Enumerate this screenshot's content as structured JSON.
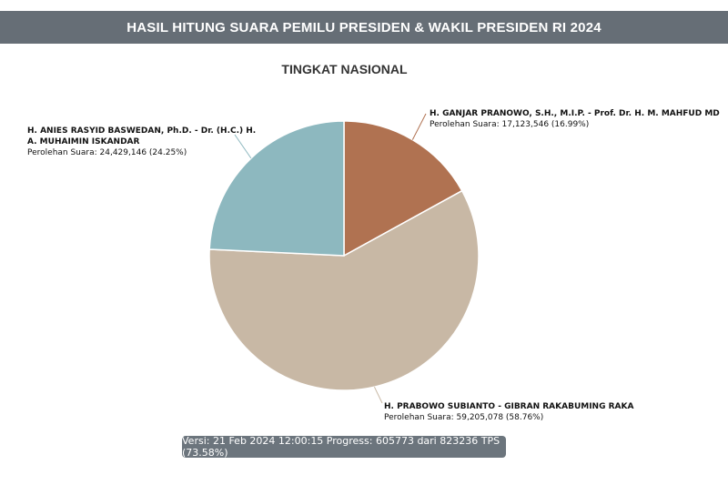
{
  "header": {
    "title": "HASIL HITUNG SUARA PEMILU PRESIDEN & WAKIL PRESIDEN RI 2024"
  },
  "chart_data": {
    "type": "pie",
    "title": "TINGKAT NASIONAL",
    "series": [
      {
        "name": "H. GANJAR PRANOWO, S.H., M.I.P. - Prof. Dr. H. M. MAHFUD MD",
        "name_lines": [
          "H. GANJAR PRANOWO, S.H., M.I.P. - Prof. Dr. H. M. MAHFUD MD"
        ],
        "value_text": "Perolehan Suara: 17,123,546 (16.99%)",
        "votes": 17123546,
        "percent": 16.99,
        "color": "#b07251"
      },
      {
        "name": "H. PRABOWO SUBIANTO - GIBRAN RAKABUMING RAKA",
        "name_lines": [
          "H. PRABOWO SUBIANTO - GIBRAN RAKABUMING RAKA"
        ],
        "value_text": "Perolehan Suara: 59,205,078 (58.76%)",
        "votes": 59205078,
        "percent": 58.76,
        "color": "#c8b8a5"
      },
      {
        "name": "H. ANIES RASYID BASWEDAN, Ph.D. - Dr. (H.C.) H. A. MUHAIMIN ISKANDAR",
        "name_lines": [
          "H. ANIES RASYID BASWEDAN, Ph.D. - Dr. (H.C.) H.",
          "A. MUHAIMIN ISKANDAR"
        ],
        "value_text": "Perolehan Suara: 24,429,146 (24.25%)",
        "votes": 24429146,
        "percent": 24.25,
        "color": "#8db8bf"
      }
    ]
  },
  "status": {
    "text": "Versi: 21 Feb 2024 12:00:15 Progress: 605773 dari 823236 TPS (73.58%)"
  }
}
